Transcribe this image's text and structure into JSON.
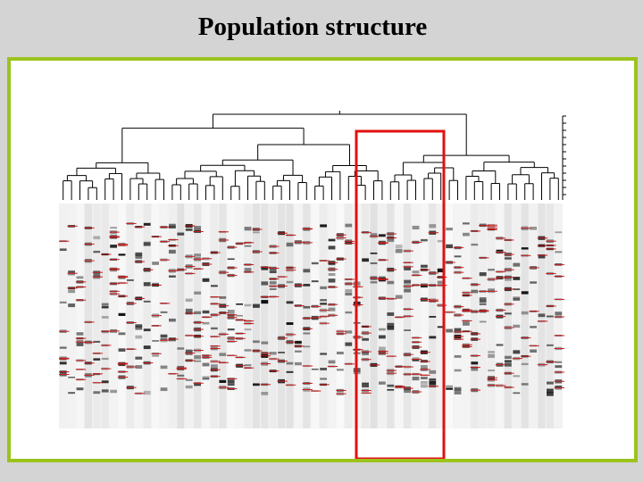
{
  "slide": {
    "title": "Population structure"
  },
  "colors": {
    "background": "#d4d4d4",
    "frame_border": "#9bc31c",
    "highlight_box": "#e01010",
    "band_marker": "#cc1a1a",
    "dendrogram_line": "#000000"
  },
  "figure": {
    "content": "dendrogram over fingerprint gel lanes",
    "highlight": "highlighted lane group"
  }
}
